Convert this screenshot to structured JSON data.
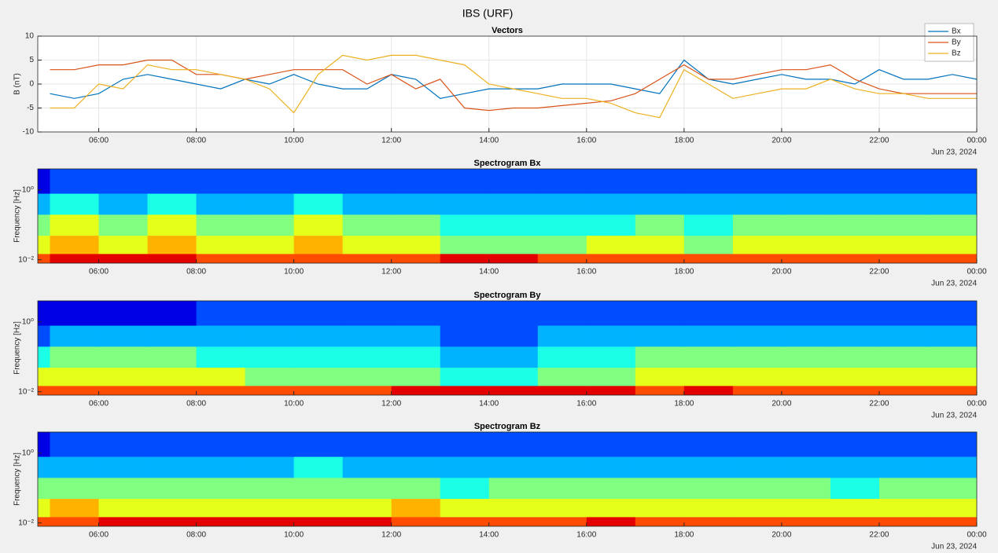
{
  "suptitle": "IBS (URF)",
  "chart_data": [
    {
      "type": "line",
      "title": "Vectors",
      "ylabel": "B (nT)",
      "date_label": "Jun 23, 2024",
      "x": [
        5,
        5.5,
        6,
        6.5,
        7,
        7.5,
        8,
        8.5,
        9,
        9.5,
        10,
        10.5,
        11,
        11.5,
        12,
        12.5,
        13,
        13.5,
        14,
        14.5,
        15,
        15.5,
        16,
        16.5,
        17,
        17.5,
        18,
        18.5,
        19,
        19.5,
        20,
        20.5,
        21,
        21.5,
        22,
        22.5,
        23,
        23.5,
        24
      ],
      "series": [
        {
          "name": "Bx",
          "color": "#0072bd",
          "values": [
            -2,
            -3,
            -2,
            1,
            2,
            1,
            0,
            -1,
            1,
            0,
            2,
            0,
            -1,
            -1,
            2,
            1,
            -3,
            -2,
            -1,
            -1,
            -1,
            0,
            0,
            0,
            -1,
            -2,
            5,
            1,
            0,
            1,
            2,
            1,
            1,
            0,
            3,
            1,
            1,
            2,
            1
          ]
        },
        {
          "name": "By",
          "color": "#d95319",
          "values": [
            3,
            3,
            4,
            4,
            5,
            5,
            2,
            2,
            1,
            2,
            3,
            3,
            3,
            0,
            2,
            -1,
            1,
            -5,
            -5.5,
            -5,
            -5,
            -4.5,
            -4,
            -3.5,
            -2,
            1,
            4,
            1,
            1,
            2,
            3,
            3,
            4,
            1,
            -1,
            -2,
            -2,
            -2,
            -2
          ]
        },
        {
          "name": "Bz",
          "color": "#edb120",
          "values": [
            -5,
            -5,
            0,
            -1,
            4,
            3,
            3,
            2,
            1,
            -1,
            -6,
            2,
            6,
            5,
            6,
            6,
            5,
            4,
            0,
            -1,
            -2,
            -3,
            -3,
            -4,
            -6,
            -7,
            3,
            0,
            -3,
            -2,
            -1,
            -1,
            1,
            -1,
            -2,
            -2,
            -3,
            -3,
            -3
          ]
        }
      ],
      "xlim": [
        4.75,
        24
      ],
      "xticks": [
        {
          "value": 6,
          "label": "06:00"
        },
        {
          "value": 8,
          "label": "08:00"
        },
        {
          "value": 10,
          "label": "10:00"
        },
        {
          "value": 12,
          "label": "12:00"
        },
        {
          "value": 14,
          "label": "14:00"
        },
        {
          "value": 16,
          "label": "16:00"
        },
        {
          "value": 18,
          "label": "18:00"
        },
        {
          "value": 20,
          "label": "20:00"
        },
        {
          "value": 22,
          "label": "22:00"
        },
        {
          "value": 24,
          "label": "00:00"
        }
      ],
      "ylim": [
        -10,
        10
      ],
      "yticks": [
        -10,
        -5,
        0,
        5,
        10
      ],
      "grid": true,
      "legend": "northeast"
    },
    {
      "type": "heatmap",
      "title": "Spectrogram Bx",
      "ylabel": "Frequency [Hz]",
      "date_label": "Jun 23, 2024",
      "x_edges": [
        4.75,
        5,
        6,
        7,
        8,
        9,
        10,
        11,
        12,
        13,
        14,
        15,
        16,
        17,
        18,
        19,
        20,
        21,
        22,
        23,
        24
      ],
      "y_edges": [
        0.008,
        0.015,
        0.05,
        0.2,
        0.8,
        4
      ],
      "z": [
        [
          8,
          9,
          9,
          9,
          8,
          8,
          8,
          8,
          8,
          9,
          9,
          8,
          8,
          8,
          8,
          8,
          8,
          8,
          8,
          8
        ],
        [
          6,
          7,
          6,
          7,
          6,
          6,
          7,
          6,
          6,
          5,
          5,
          5,
          6,
          6,
          5,
          6,
          6,
          6,
          6,
          6
        ],
        [
          5,
          6,
          5,
          6,
          5,
          5,
          6,
          5,
          5,
          4,
          4,
          4,
          4,
          5,
          4,
          5,
          5,
          5,
          5,
          5
        ],
        [
          3,
          4,
          3,
          4,
          3,
          3,
          4,
          3,
          3,
          3,
          3,
          3,
          3,
          3,
          3,
          3,
          3,
          3,
          3,
          3
        ],
        [
          1,
          2,
          2,
          2,
          2,
          2,
          2,
          2,
          2,
          2,
          2,
          2,
          2,
          2,
          2,
          2,
          2,
          2,
          2,
          2
        ]
      ],
      "clim": [
        0,
        10
      ],
      "colormap": "jet",
      "ylog": true,
      "xlim": [
        4.75,
        24
      ],
      "xticks": [
        {
          "value": 6,
          "label": "06:00"
        },
        {
          "value": 8,
          "label": "08:00"
        },
        {
          "value": 10,
          "label": "10:00"
        },
        {
          "value": 12,
          "label": "12:00"
        },
        {
          "value": 14,
          "label": "14:00"
        },
        {
          "value": 16,
          "label": "16:00"
        },
        {
          "value": 18,
          "label": "18:00"
        },
        {
          "value": 20,
          "label": "20:00"
        },
        {
          "value": 22,
          "label": "22:00"
        },
        {
          "value": 24,
          "label": "00:00"
        }
      ],
      "ylim": [
        0.008,
        4
      ],
      "yticks": [
        {
          "value": 0.01,
          "label": "10⁻²"
        },
        {
          "value": 1,
          "label": "10⁰"
        }
      ],
      "grid": false
    },
    {
      "type": "heatmap",
      "title": "Spectrogram By",
      "ylabel": "Frequency [Hz]",
      "date_label": "Jun 23, 2024",
      "x_edges": [
        4.75,
        5,
        6,
        7,
        8,
        9,
        10,
        11,
        12,
        13,
        14,
        15,
        16,
        17,
        18,
        19,
        20,
        21,
        22,
        23,
        24
      ],
      "y_edges": [
        0.008,
        0.015,
        0.05,
        0.2,
        0.8,
        4
      ],
      "z": [
        [
          8,
          8,
          8,
          8,
          8,
          8,
          8,
          8,
          9,
          9,
          9,
          9,
          9,
          8,
          9,
          8,
          8,
          8,
          8,
          8
        ],
        [
          6,
          6,
          6,
          6,
          6,
          5,
          5,
          5,
          5,
          4,
          4,
          5,
          5,
          6,
          6,
          6,
          6,
          6,
          6,
          6
        ],
        [
          4,
          5,
          5,
          5,
          4,
          4,
          4,
          4,
          4,
          3,
          3,
          4,
          4,
          5,
          5,
          5,
          5,
          5,
          5,
          5
        ],
        [
          2,
          3,
          3,
          3,
          3,
          3,
          3,
          3,
          3,
          2,
          2,
          3,
          3,
          3,
          3,
          3,
          3,
          3,
          3,
          3
        ],
        [
          1,
          1,
          1,
          1,
          2,
          2,
          2,
          2,
          2,
          2,
          2,
          2,
          2,
          2,
          2,
          2,
          2,
          2,
          2,
          2
        ]
      ],
      "clim": [
        0,
        10
      ],
      "colormap": "jet",
      "ylog": true,
      "xlim": [
        4.75,
        24
      ],
      "xticks": [
        {
          "value": 6,
          "label": "06:00"
        },
        {
          "value": 8,
          "label": "08:00"
        },
        {
          "value": 10,
          "label": "10:00"
        },
        {
          "value": 12,
          "label": "12:00"
        },
        {
          "value": 14,
          "label": "14:00"
        },
        {
          "value": 16,
          "label": "16:00"
        },
        {
          "value": 18,
          "label": "18:00"
        },
        {
          "value": 20,
          "label": "20:00"
        },
        {
          "value": 22,
          "label": "22:00"
        },
        {
          "value": 24,
          "label": "00:00"
        }
      ],
      "ylim": [
        0.008,
        4
      ],
      "yticks": [
        {
          "value": 0.01,
          "label": "10⁻²"
        },
        {
          "value": 1,
          "label": "10⁰"
        }
      ],
      "grid": false
    },
    {
      "type": "heatmap",
      "title": "Spectrogram Bz",
      "ylabel": "Frequency [Hz]",
      "date_label": "Jun 23, 2024",
      "x_edges": [
        4.75,
        5,
        6,
        7,
        8,
        9,
        10,
        11,
        12,
        13,
        14,
        15,
        16,
        17,
        18,
        19,
        20,
        21,
        22,
        23,
        24
      ],
      "y_edges": [
        0.008,
        0.015,
        0.05,
        0.2,
        0.8,
        4
      ],
      "z": [
        [
          8,
          8,
          9,
          9,
          9,
          9,
          9,
          9,
          8,
          8,
          8,
          8,
          9,
          8,
          8,
          8,
          8,
          8,
          8,
          8
        ],
        [
          6,
          7,
          6,
          6,
          6,
          6,
          6,
          6,
          7,
          6,
          6,
          6,
          6,
          6,
          6,
          6,
          6,
          6,
          6,
          6
        ],
        [
          5,
          5,
          5,
          5,
          5,
          5,
          5,
          5,
          5,
          4,
          5,
          5,
          5,
          5,
          5,
          5,
          5,
          4,
          5,
          5
        ],
        [
          3,
          3,
          3,
          3,
          3,
          3,
          4,
          3,
          3,
          3,
          3,
          3,
          3,
          3,
          3,
          3,
          3,
          3,
          3,
          3
        ],
        [
          1,
          2,
          2,
          2,
          2,
          2,
          2,
          2,
          2,
          2,
          2,
          2,
          2,
          2,
          2,
          2,
          2,
          2,
          2,
          2
        ]
      ],
      "clim": [
        0,
        10
      ],
      "colormap": "jet",
      "ylog": true,
      "xlim": [
        4.75,
        24
      ],
      "xticks": [
        {
          "value": 6,
          "label": "06:00"
        },
        {
          "value": 8,
          "label": "08:00"
        },
        {
          "value": 10,
          "label": "10:00"
        },
        {
          "value": 12,
          "label": "12:00"
        },
        {
          "value": 14,
          "label": "14:00"
        },
        {
          "value": 16,
          "label": "16:00"
        },
        {
          "value": 18,
          "label": "18:00"
        },
        {
          "value": 20,
          "label": "20:00"
        },
        {
          "value": 22,
          "label": "22:00"
        },
        {
          "value": 24,
          "label": "00:00"
        }
      ],
      "ylim": [
        0.008,
        4
      ],
      "yticks": [
        {
          "value": 0.01,
          "label": "10⁻²"
        },
        {
          "value": 1,
          "label": "10⁰"
        }
      ],
      "grid": false
    }
  ]
}
